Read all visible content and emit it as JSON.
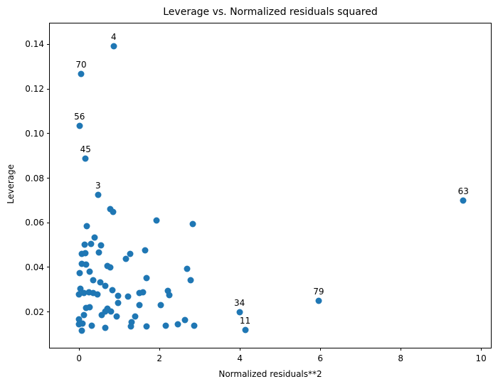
{
  "chart_data": {
    "type": "scatter",
    "title": "Leverage vs. Normalized residuals squared",
    "xlabel": "Normalized residuals**2",
    "ylabel": "Leverage",
    "xlim": [
      -0.73,
      10.28
    ],
    "ylim": [
      0.0033,
      0.1494
    ],
    "x_ticks": [
      0,
      2,
      4,
      6,
      8,
      10
    ],
    "y_ticks": [
      0.02,
      0.04,
      0.06,
      0.08,
      0.1,
      0.12,
      0.14
    ],
    "grid": false,
    "legend": null,
    "marker_color": "#1f77b4",
    "annotated_points": [
      "4",
      "70",
      "56",
      "45",
      "3",
      "63",
      "79",
      "34",
      "11"
    ],
    "points": [
      {
        "x": 0.86,
        "y": 0.1393,
        "label": "4"
      },
      {
        "x": 0.05,
        "y": 0.1267,
        "label": "70"
      },
      {
        "x": 0.01,
        "y": 0.1034,
        "label": "56"
      },
      {
        "x": 0.16,
        "y": 0.0889,
        "label": "45"
      },
      {
        "x": 0.47,
        "y": 0.0724,
        "label": "3"
      },
      {
        "x": 9.56,
        "y": 0.0699,
        "label": "63"
      },
      {
        "x": 5.96,
        "y": 0.025,
        "label": "79"
      },
      {
        "x": 3.99,
        "y": 0.0198,
        "label": "34"
      },
      {
        "x": 4.13,
        "y": 0.012,
        "label": "11"
      },
      {
        "x": 0.78,
        "y": 0.0663
      },
      {
        "x": 0.84,
        "y": 0.065
      },
      {
        "x": 1.93,
        "y": 0.061
      },
      {
        "x": 2.82,
        "y": 0.0594
      },
      {
        "x": 0.19,
        "y": 0.0586
      },
      {
        "x": 0.38,
        "y": 0.0533
      },
      {
        "x": 0.3,
        "y": 0.0506
      },
      {
        "x": 0.13,
        "y": 0.0503
      },
      {
        "x": 0.54,
        "y": 0.0499
      },
      {
        "x": 0.5,
        "y": 0.0467
      },
      {
        "x": 0.06,
        "y": 0.0461
      },
      {
        "x": 0.15,
        "y": 0.0464
      },
      {
        "x": 1.27,
        "y": 0.0462
      },
      {
        "x": 1.65,
        "y": 0.0475
      },
      {
        "x": 1.16,
        "y": 0.0438
      },
      {
        "x": 0.06,
        "y": 0.0417
      },
      {
        "x": 0.18,
        "y": 0.0412
      },
      {
        "x": 0.71,
        "y": 0.0405
      },
      {
        "x": 0.78,
        "y": 0.0401
      },
      {
        "x": 0.02,
        "y": 0.0375
      },
      {
        "x": 0.27,
        "y": 0.038
      },
      {
        "x": 2.69,
        "y": 0.0395
      },
      {
        "x": 2.78,
        "y": 0.0344
      },
      {
        "x": 0.35,
        "y": 0.0343
      },
      {
        "x": 0.53,
        "y": 0.0332
      },
      {
        "x": 0.65,
        "y": 0.0316
      },
      {
        "x": 1.68,
        "y": 0.0353
      },
      {
        "x": 0.03,
        "y": 0.0304
      },
      {
        "x": 0.0,
        "y": 0.0278
      },
      {
        "x": 0.12,
        "y": 0.0285
      },
      {
        "x": 0.24,
        "y": 0.0288
      },
      {
        "x": 0.35,
        "y": 0.0285
      },
      {
        "x": 0.45,
        "y": 0.0278
      },
      {
        "x": 0.83,
        "y": 0.0299
      },
      {
        "x": 0.97,
        "y": 0.0272
      },
      {
        "x": 1.22,
        "y": 0.0268
      },
      {
        "x": 1.5,
        "y": 0.0284
      },
      {
        "x": 1.59,
        "y": 0.0289
      },
      {
        "x": 2.21,
        "y": 0.0295
      },
      {
        "x": 2.24,
        "y": 0.0277
      },
      {
        "x": 0.97,
        "y": 0.0239
      },
      {
        "x": 1.5,
        "y": 0.0231
      },
      {
        "x": 2.04,
        "y": 0.0231
      },
      {
        "x": 0.17,
        "y": 0.0217
      },
      {
        "x": 0.27,
        "y": 0.022
      },
      {
        "x": 0.71,
        "y": 0.0214
      },
      {
        "x": 0.8,
        "y": 0.0203
      },
      {
        "x": 0.65,
        "y": 0.0201
      },
      {
        "x": 0.12,
        "y": 0.0187
      },
      {
        "x": 0.56,
        "y": 0.0186
      },
      {
        "x": 0.94,
        "y": 0.018
      },
      {
        "x": 0.0,
        "y": 0.0168
      },
      {
        "x": 1.39,
        "y": 0.0179
      },
      {
        "x": 2.63,
        "y": 0.0163
      },
      {
        "x": 1.3,
        "y": 0.0155
      },
      {
        "x": 0.0,
        "y": 0.0145
      },
      {
        "x": 0.09,
        "y": 0.0147
      },
      {
        "x": 0.32,
        "y": 0.0139
      },
      {
        "x": 1.28,
        "y": 0.0134
      },
      {
        "x": 1.68,
        "y": 0.0134
      },
      {
        "x": 2.15,
        "y": 0.0139
      },
      {
        "x": 2.86,
        "y": 0.0139
      },
      {
        "x": 2.45,
        "y": 0.0145
      },
      {
        "x": 0.65,
        "y": 0.0129
      },
      {
        "x": 0.06,
        "y": 0.0116
      }
    ]
  }
}
